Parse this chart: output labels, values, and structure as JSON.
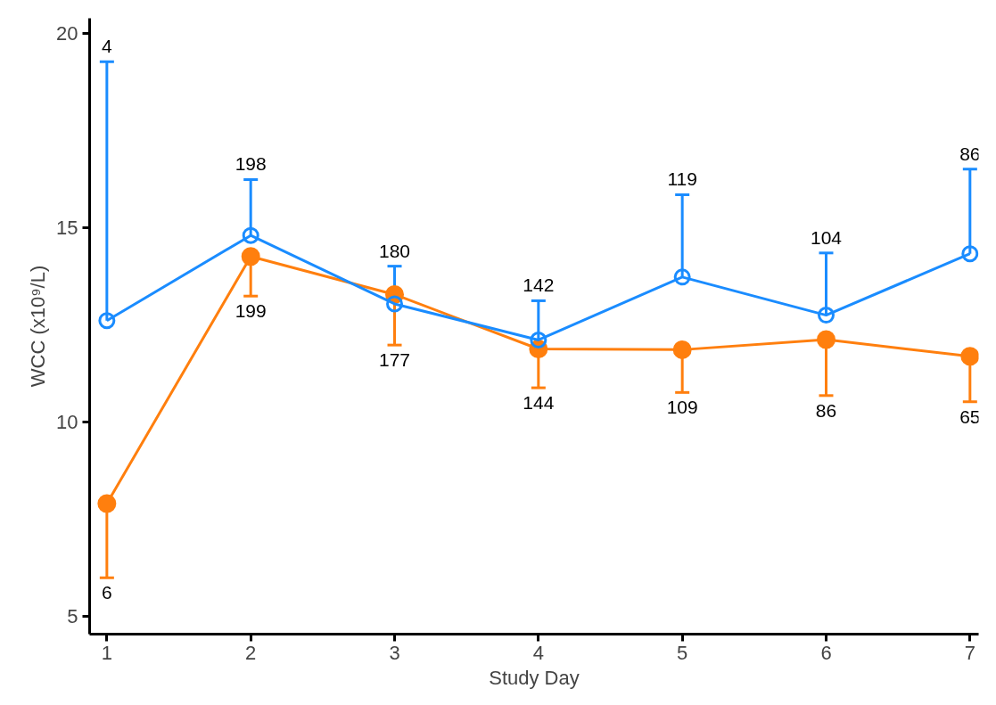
{
  "chart_data": {
    "type": "line",
    "xlabel": "Study Day",
    "ylabel": "WCC (x10⁹/L)",
    "x": [
      1,
      2,
      3,
      4,
      5,
      6,
      7
    ],
    "series": [
      {
        "color": "#1a8cff",
        "values": [
          12.62,
          14.81,
          13.05,
          12.12,
          13.74,
          12.76,
          14.34
        ],
        "errors": [
          [
            12.62,
            19.28
          ],
          [
            14.81,
            16.25
          ],
          [
            13.05,
            14.02
          ],
          [
            12.12,
            13.13
          ],
          [
            13.74,
            15.86
          ],
          [
            12.76,
            14.36
          ],
          [
            14.34,
            16.52
          ]
        ]
      },
      {
        "color": "#ff7f0e",
        "values": [
          7.91,
          14.27,
          13.29,
          11.89,
          11.87,
          12.13,
          11.7
        ],
        "errors": [
          [
            6.0,
            7.91
          ],
          [
            13.25,
            14.27
          ],
          [
            11.99,
            13.29
          ],
          [
            10.89,
            11.89
          ],
          [
            10.77,
            11.87
          ],
          [
            10.69,
            12.13
          ],
          [
            10.53,
            11.7
          ]
        ]
      }
    ],
    "annotations": [
      {
        "text": "4",
        "x": 1,
        "y": 19.28
      },
      {
        "text": "198",
        "x": 2,
        "y": 16.25
      },
      {
        "text": "180",
        "x": 3,
        "y": 14.02
      },
      {
        "text": "142",
        "x": 4,
        "y": 13.13
      },
      {
        "text": "119",
        "x": 5,
        "y": 15.86
      },
      {
        "text": "104",
        "x": 6,
        "y": 14.36
      },
      {
        "text": "86",
        "x": 7,
        "y": 16.52
      },
      {
        "text": "6",
        "x": 1,
        "y": 6.0
      },
      {
        "text": "199",
        "x": 2,
        "y": 13.25
      },
      {
        "text": "177",
        "x": 3,
        "y": 11.99
      },
      {
        "text": "144",
        "x": 4,
        "y": 10.89
      },
      {
        "text": "109",
        "x": 5,
        "y": 10.77
      },
      {
        "text": "86",
        "x": 6,
        "y": 10.69
      },
      {
        "text": "65",
        "x": 7,
        "y": 10.53
      }
    ],
    "xlim": [
      0.88,
      7.06
    ],
    "ylim": [
      4.55,
      20.4
    ],
    "xticks": [
      1,
      2,
      3,
      4,
      5,
      6,
      7
    ],
    "yticks": [
      5,
      10,
      15,
      20
    ],
    "marker": "circle",
    "grid": false
  }
}
